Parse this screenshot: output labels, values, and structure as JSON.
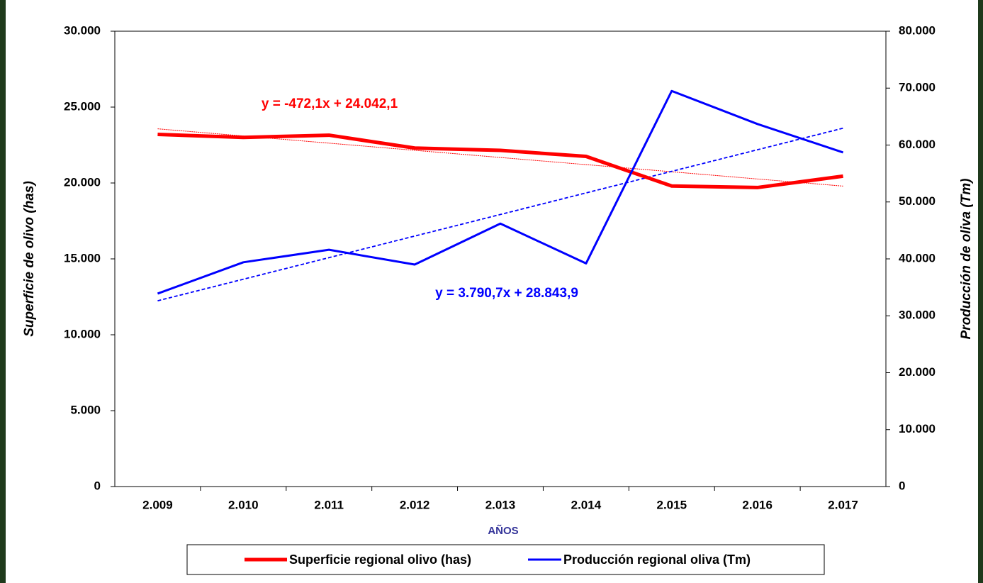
{
  "chart_data": {
    "type": "line",
    "categories": [
      "2.009",
      "2.010",
      "2.011",
      "2.012",
      "2.013",
      "2.014",
      "2.015",
      "2.016",
      "2.017"
    ],
    "series": [
      {
        "name": "Superficie regional olivo (has)",
        "color": "#ff0000",
        "axis": "y",
        "values": [
          23200,
          23000,
          23150,
          22300,
          22150,
          21750,
          19800,
          19700,
          20450
        ]
      },
      {
        "name": "Producción regional oliva (Tm)",
        "color": "#0000ff",
        "axis": "y2",
        "values": [
          33900,
          39400,
          41600,
          39000,
          46200,
          39200,
          69500,
          63700,
          58700
        ]
      }
    ],
    "trendlines": [
      {
        "color": "#ff0000",
        "axis": "y",
        "values": [
          23570,
          23098,
          22626,
          22154,
          21682,
          21210,
          20738,
          20265,
          19793
        ]
      },
      {
        "color": "#0000ff",
        "axis": "y2",
        "values": [
          32635,
          36425,
          40216,
          44007,
          47797,
          51588,
          55379,
          59169,
          62960
        ]
      }
    ],
    "annotations": [
      {
        "text": "y = -472,1x + 24.042,1",
        "color": "#ff0000"
      },
      {
        "text": "y = 3.790,7x + 28.843,9",
        "color": "#0000ff"
      }
    ],
    "x_label": "AÑOS",
    "y_label": "Superficie de olivo  (has)",
    "y2_label": "Producción de oliva  (Tm)",
    "ylim": [
      0,
      30000
    ],
    "yticks": [
      0,
      {
        "value": 5000,
        "label": "5.000"
      },
      {
        "value": 10000,
        "label": "10.000"
      },
      {
        "value": 15000,
        "label": "15.000"
      },
      {
        "value": 20000,
        "label": "20.000"
      },
      {
        "value": 25000,
        "label": "25.000"
      },
      {
        "value": 30000,
        "label": "30.000"
      }
    ],
    "y2lim": [
      0,
      80000
    ],
    "y2ticks": [
      0,
      {
        "value": 10000,
        "label": "10.000"
      },
      {
        "value": 20000,
        "label": "20.000"
      },
      {
        "value": 30000,
        "label": "30.000"
      },
      {
        "value": 40000,
        "label": "40.000"
      },
      {
        "value": 50000,
        "label": "50.000"
      },
      {
        "value": 60000,
        "label": "60.000"
      },
      {
        "value": 70000,
        "label": "70.000"
      },
      {
        "value": 80000,
        "label": "80.000"
      }
    ],
    "legend": "bottom"
  }
}
